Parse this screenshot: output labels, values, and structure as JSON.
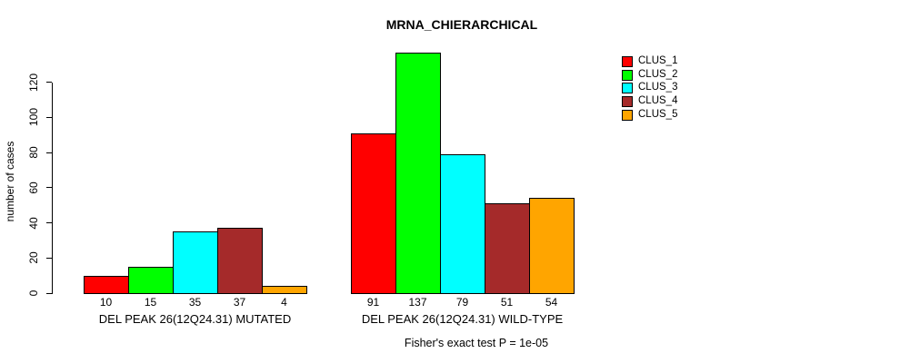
{
  "chart_data": {
    "type": "bar",
    "title": "MRNA_CHIERARCHICAL",
    "ylabel": "number of cases",
    "xlabel": "",
    "ylim": [
      0,
      137
    ],
    "yticks": [
      0,
      20,
      40,
      60,
      80,
      100,
      120
    ],
    "grid": false,
    "legend_position": "top-right",
    "categories": [
      "DEL PEAK 26(12Q24.31) MUTATED",
      "DEL PEAK 26(12Q24.31) WILD-TYPE"
    ],
    "series": [
      {
        "name": "CLUS_1",
        "color": "#FF0000",
        "values": [
          10,
          91
        ]
      },
      {
        "name": "CLUS_2",
        "color": "#00FF00",
        "values": [
          15,
          137
        ]
      },
      {
        "name": "CLUS_3",
        "color": "#00FFFF",
        "values": [
          35,
          79
        ]
      },
      {
        "name": "CLUS_4",
        "color": "#A52A2A",
        "values": [
          37,
          51
        ]
      },
      {
        "name": "CLUS_5",
        "color": "#FFA500",
        "values": [
          4,
          54
        ]
      }
    ],
    "bar_value_labels_shown": true,
    "footnote": "Fisher's exact test P = 1e-05"
  }
}
